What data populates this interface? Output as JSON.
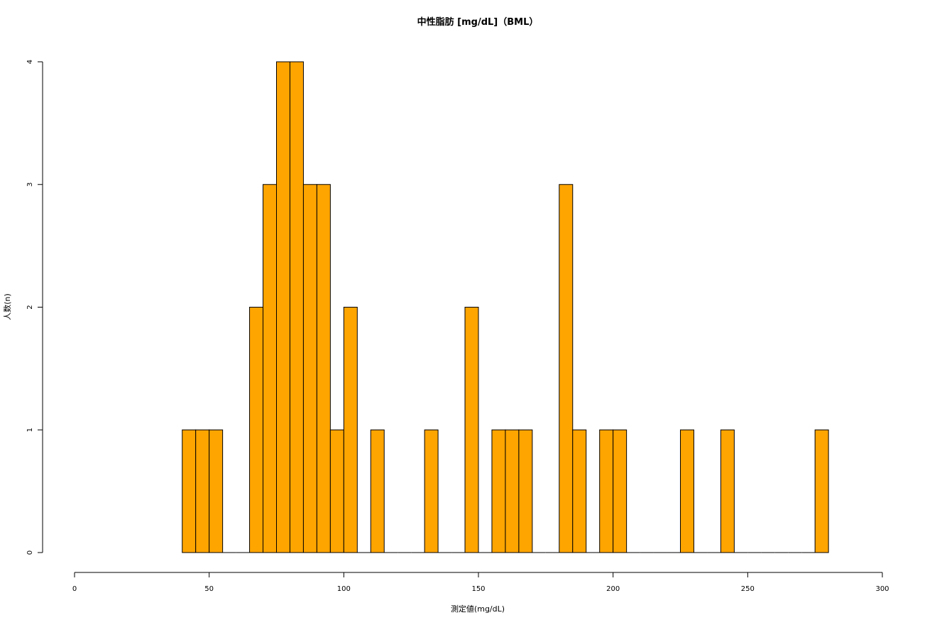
{
  "chart_data": {
    "type": "bar",
    "title": "中性脂肪 [mg/dL]（BML）",
    "xlabel": "測定値(mg/dL)",
    "ylabel": "人数(n)",
    "bin_width": 5,
    "bin_start": 40,
    "counts": [
      1,
      1,
      1,
      0,
      0,
      2,
      3,
      4,
      4,
      3,
      3,
      1,
      2,
      0,
      1,
      0,
      0,
      0,
      1,
      0,
      0,
      2,
      0,
      1,
      1,
      1,
      0,
      0,
      3,
      1,
      0,
      1,
      1,
      0,
      0,
      0,
      0,
      1,
      0,
      0,
      1,
      0,
      0,
      0,
      0,
      0,
      0,
      1
    ],
    "xlim": [
      0,
      300
    ],
    "ylim": [
      0,
      4
    ],
    "x_ticks": [
      "0",
      "50",
      "100",
      "150",
      "200",
      "250",
      "300"
    ],
    "y_ticks": [
      "0",
      "1",
      "2",
      "3",
      "4"
    ],
    "bar_color": "#FFA500",
    "border_color": "#000000",
    "grid": false,
    "legend": "none"
  }
}
